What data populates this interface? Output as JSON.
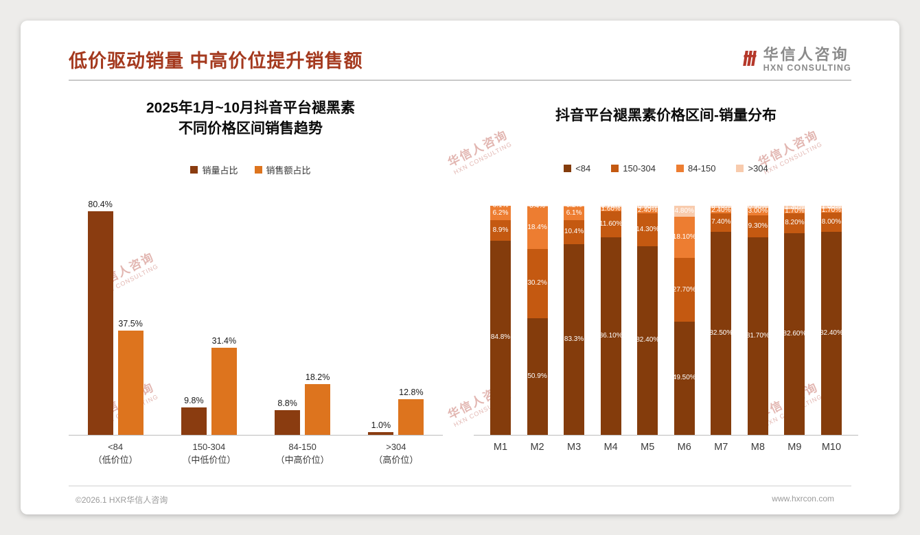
{
  "slide": {
    "title": "低价驱动销量 中高价位提升销售额",
    "logo": {
      "cn": "华信人咨询",
      "en": "HXN CONSULTING"
    },
    "watermark": {
      "line1": "华信人咨询",
      "line2": "HXN CONSULTING"
    },
    "footer": {
      "copyright": "©2026.1 HXR华信人咨询",
      "website": "www.hxrcon.com"
    }
  },
  "colors": {
    "slide_title": "#A4391E",
    "logo_red": "#B5382A",
    "logo_gray": "#8A8A8A",
    "watermark_pink": "#C66E64",
    "axis_gray": "#BBBBBB"
  },
  "chart_data": [
    {
      "type": "bar",
      "title_lines": [
        "2025年1月~10月抖音平台褪黑素",
        "不同价格区间销售趋势"
      ],
      "legend_position": "top",
      "grid": false,
      "ylim": [
        0,
        100
      ],
      "unit": "percent",
      "categories": [
        [
          "<84",
          "（低价位）"
        ],
        [
          "150-304",
          "（中低价位）"
        ],
        [
          "84-150",
          "（中高价位）"
        ],
        [
          ">304",
          "（高价位）"
        ]
      ],
      "series": [
        {
          "name": "销量占比",
          "color": "#8A3C10",
          "values": [
            80.4,
            9.8,
            8.8,
            1.0
          ],
          "labels": [
            "80.4%",
            "9.8%",
            "8.8%",
            "1.0%"
          ]
        },
        {
          "name": "销售额占比",
          "color": "#DD741E",
          "values": [
            37.5,
            31.4,
            18.2,
            12.8
          ],
          "labels": [
            "37.5%",
            "31.4%",
            "18.2%",
            "12.8%"
          ]
        }
      ]
    },
    {
      "type": "stacked-bar",
      "title": "抖音平台褪黑素价格区间-销量分布",
      "legend_position": "top",
      "grid": false,
      "unit": "percent",
      "categories": [
        "M1",
        "M2",
        "M3",
        "M4",
        "M5",
        "M6",
        "M7",
        "M8",
        "M9",
        "M10"
      ],
      "series": [
        {
          "name": "<84",
          "color": "#843C0C",
          "values": [
            84.8,
            50.9,
            83.3,
            86.1,
            82.4,
            49.5,
            82.5,
            81.7,
            82.6,
            82.4
          ],
          "labels": [
            "84.8%",
            "50.9%",
            "83.3%",
            "86.10%",
            "82.40%",
            "49.50%",
            "82.50%",
            "81.70%",
            "82.60%",
            "82.40%"
          ]
        },
        {
          "name": "150-304",
          "color": "#C45911",
          "values": [
            8.9,
            30.2,
            10.4,
            11.6,
            14.3,
            27.7,
            7.4,
            9.3,
            8.2,
            8.0
          ],
          "labels": [
            "8.9%",
            "30.2%",
            "10.4%",
            "11.60%",
            "14.30%",
            "27.70%",
            "7.40%",
            "9.30%",
            "8.20%",
            "8.00%"
          ]
        },
        {
          "name": "84-150",
          "color": "#ED7D31",
          "values": [
            6.2,
            18.4,
            6.1,
            1.6,
            2.4,
            18.1,
            2.4,
            3.0,
            1.7,
            1.7
          ],
          "labels": [
            "6.2%",
            "18.4%",
            "6.1%",
            "1.60%",
            "2.40%",
            "18.10%",
            "2.40%",
            "3.00%",
            "1.70%",
            "1.70%"
          ]
        },
        {
          "name": ">304",
          "color": "#F8CBAD",
          "values": [
            0.1,
            0.4,
            0.2,
            0.7,
            0.9,
            4.8,
            0.7,
            0.9,
            1.3,
            1.0
          ],
          "labels": [
            "0.1%",
            "0.4%",
            "0.2%",
            "0.70%",
            "0.90%",
            "4.80%",
            "0.70%",
            "0.90%",
            "1.30%",
            "1.00%"
          ]
        }
      ]
    }
  ]
}
